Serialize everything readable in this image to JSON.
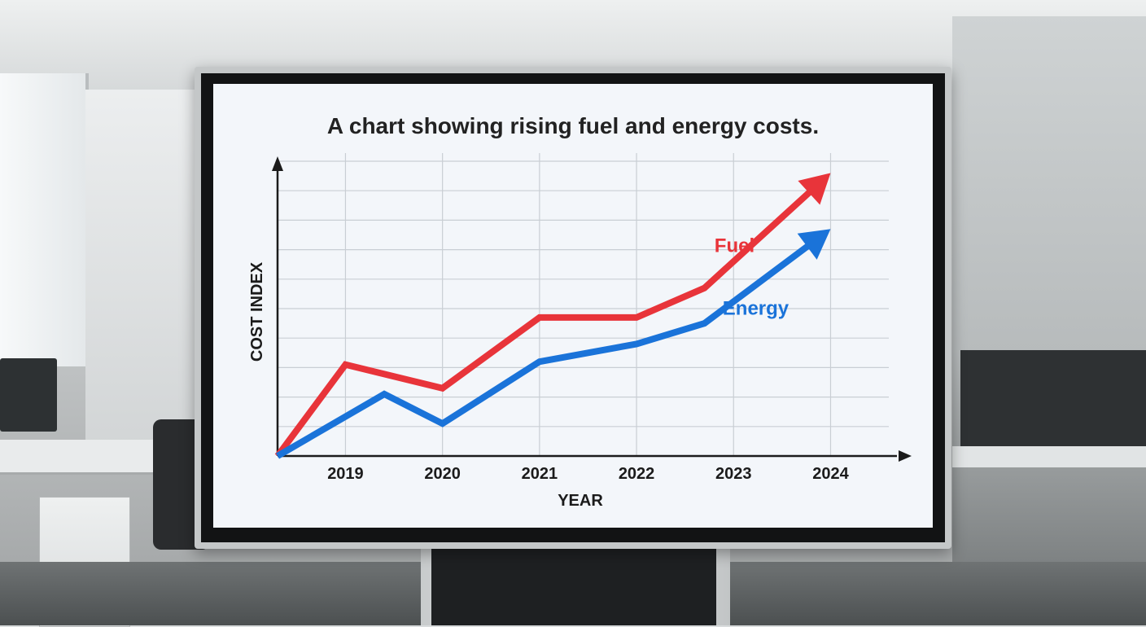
{
  "chart_data": {
    "type": "line",
    "title": "A chart showing rising fuel and energy costs.",
    "xlabel": "YEAR",
    "ylabel": "COST INDEX",
    "categories": [
      "2019",
      "2020",
      "2021",
      "2022",
      "2023",
      "2024"
    ],
    "xlim": [
      2018.3,
      2024.6
    ],
    "ylim": [
      0,
      10
    ],
    "grid": true,
    "legend": "inline labels near line ends",
    "series": [
      {
        "name": "Fuel",
        "color": "#e8343a",
        "x": [
          2018.3,
          2019.0,
          2020.0,
          2021.0,
          2022.0,
          2022.7,
          2024.0
        ],
        "y": [
          0,
          3.1,
          2.3,
          4.7,
          4.7,
          5.7,
          9.6
        ]
      },
      {
        "name": "Energy",
        "color": "#1a73d9",
        "x": [
          2018.3,
          2019.4,
          2020.0,
          2021.0,
          2022.0,
          2022.7,
          2024.0
        ],
        "y": [
          0,
          2.1,
          1.1,
          3.2,
          3.8,
          4.5,
          7.7
        ]
      }
    ]
  }
}
